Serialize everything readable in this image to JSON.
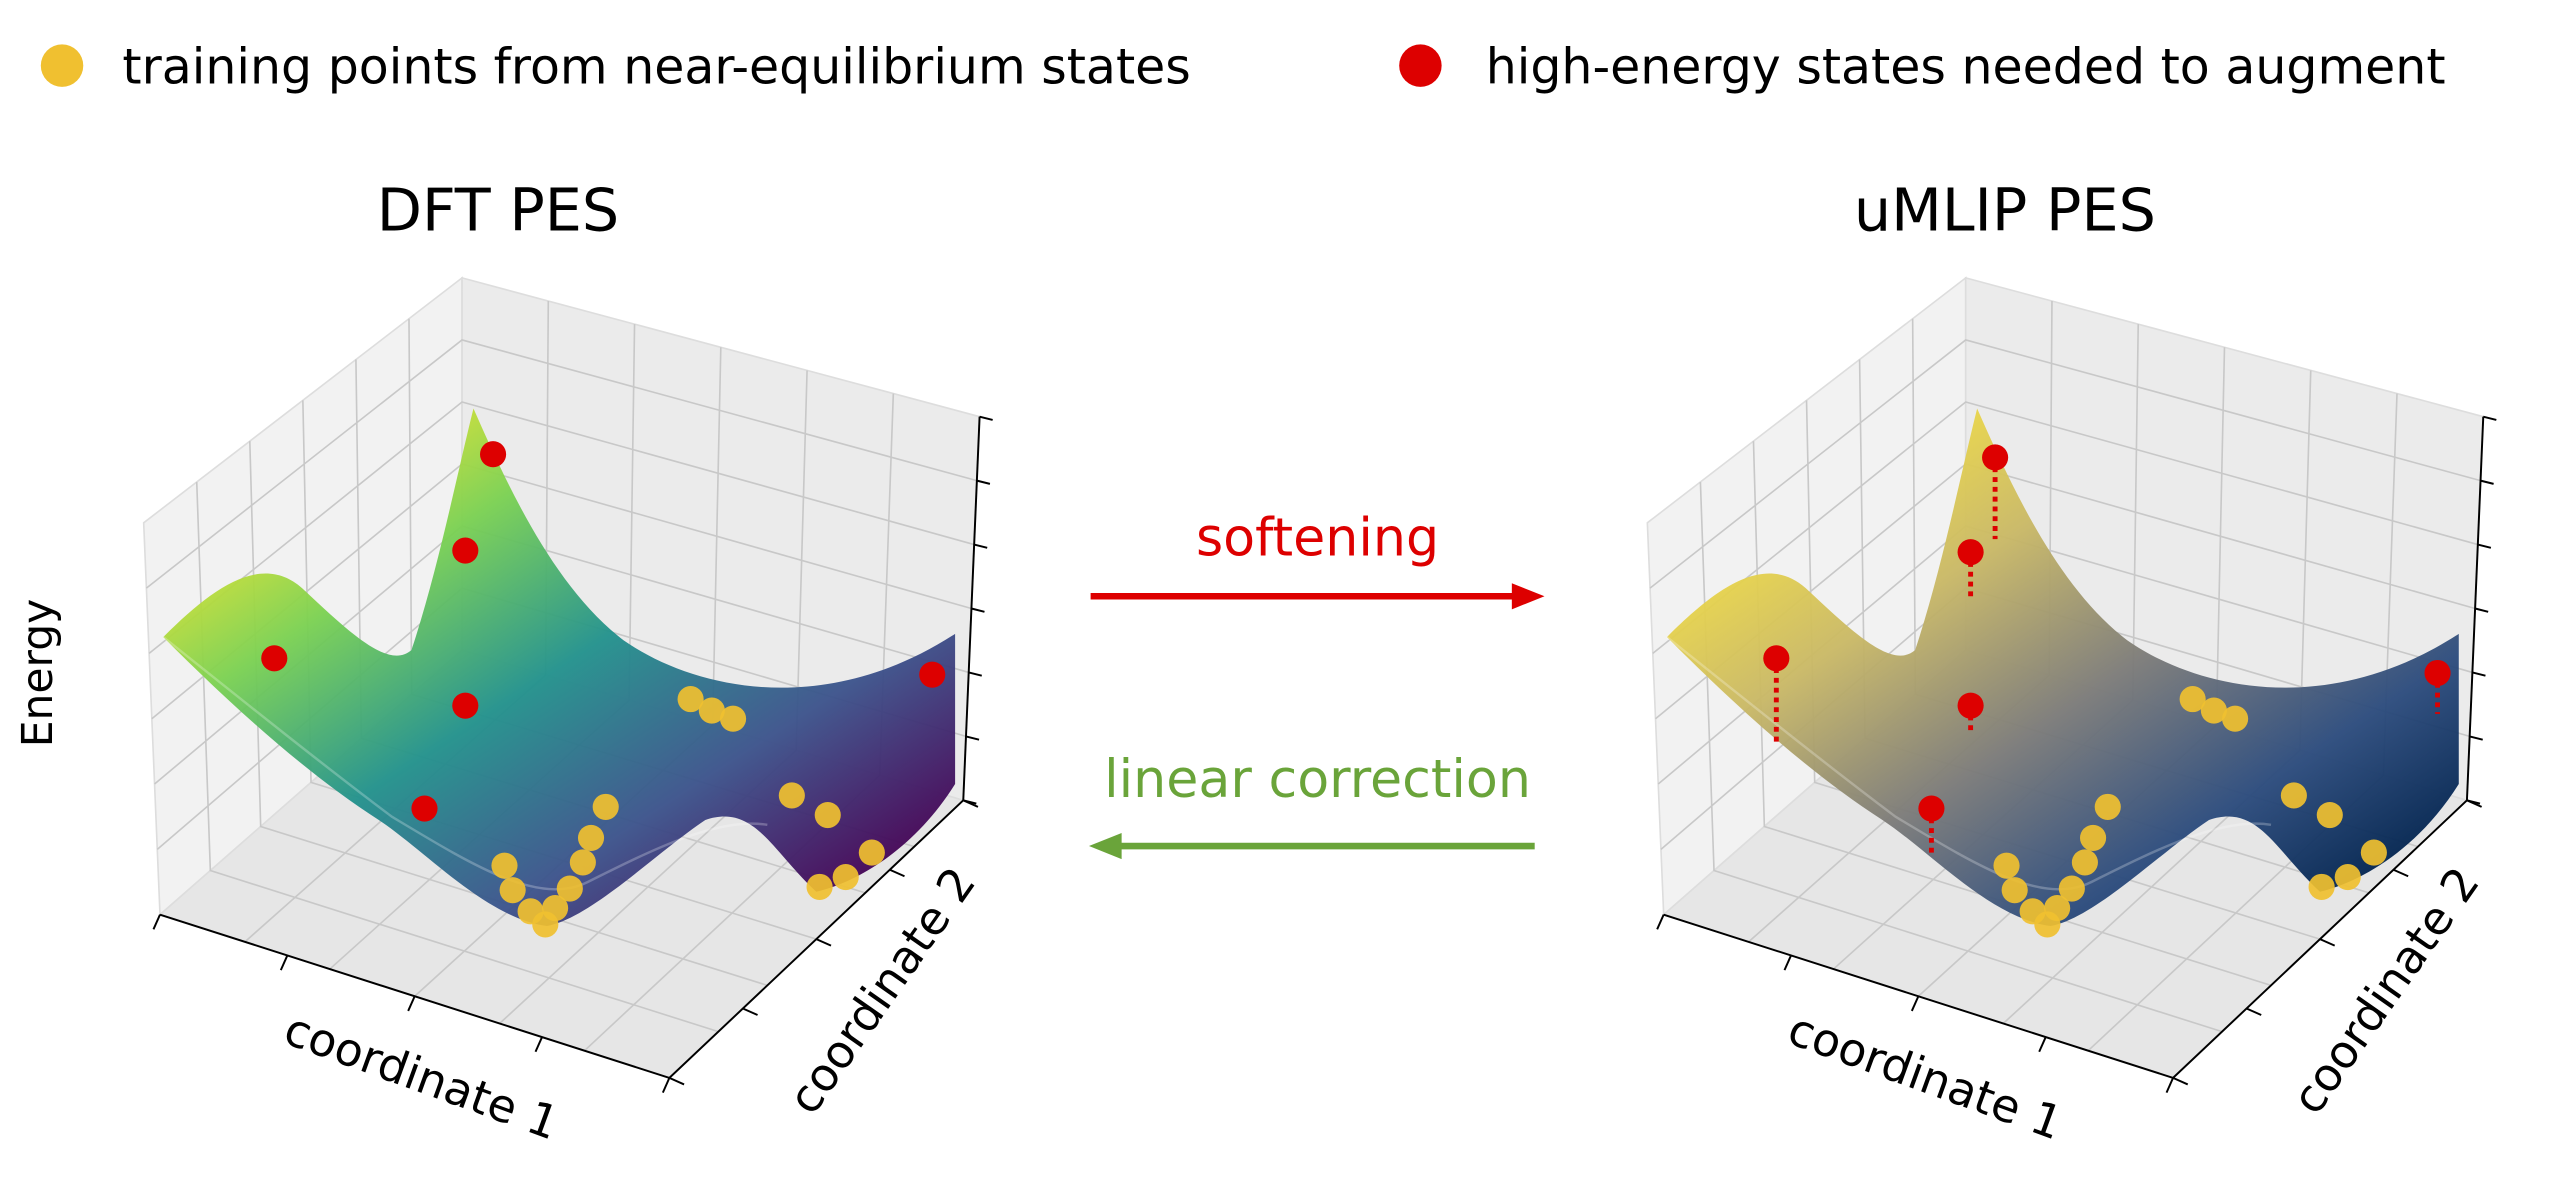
{
  "legend": {
    "training_label": "training points from near-equilibrium states",
    "high_energy_label": "high-energy states needed to augment",
    "training_color": "#f0c030",
    "high_energy_color": "#dd0000"
  },
  "panels": {
    "left": {
      "title": "DFT PES",
      "xlabel": "coordinate 1",
      "ylabel": "coordinate 2",
      "zlabel": "Energy",
      "colormap": "viridis"
    },
    "right": {
      "title": "uMLIP PES",
      "xlabel": "coordinate 1",
      "ylabel": "coordinate 2",
      "colormap": "cividis"
    }
  },
  "arrows": {
    "forward": {
      "label": "softening",
      "color": "#dd0000"
    },
    "backward": {
      "label": "linear correction",
      "color": "#6aa43a"
    }
  }
}
